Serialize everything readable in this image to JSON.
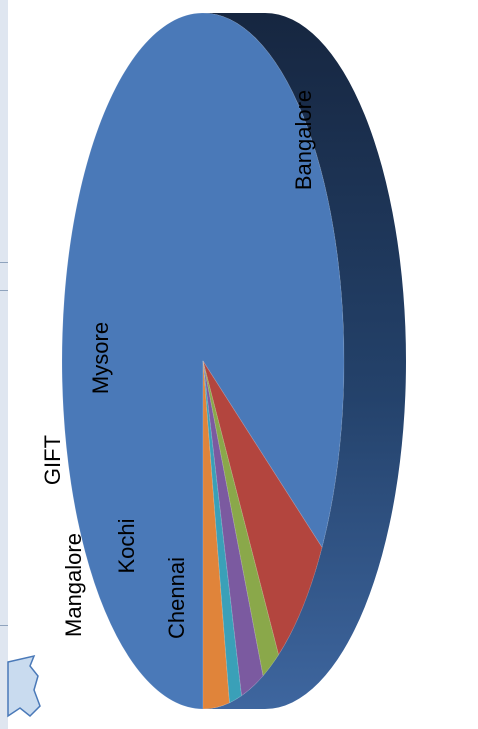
{
  "chart_data": {
    "type": "pie",
    "title": "",
    "orientation": "rotated-90-ccw",
    "style": "3d-elliptical",
    "slices": [
      {
        "label": "Bangalore",
        "value": 84.0,
        "color": "#4a79b8",
        "label_color": "#000000",
        "label_place": "inside"
      },
      {
        "label": "Chennai",
        "value": 7.0,
        "color": "#b3453e",
        "label_color": "#000000",
        "label_place": "inside"
      },
      {
        "label": "Kochi",
        "value": 2.0,
        "color": "#8aa84a",
        "label_color": "#000000",
        "label_place": "inside"
      },
      {
        "label": "Mangalore",
        "value": 2.6,
        "color": "#7b5aa0",
        "label_color": "#000000",
        "label_place": "outside"
      },
      {
        "label": "GIFT",
        "value": 1.4,
        "color": "#3aa0b8",
        "label_color": "#000000",
        "label_place": "outside"
      },
      {
        "label": "Mysore",
        "value": 3.0,
        "color": "#e0843a",
        "label_color": "#000000",
        "label_place": "inside"
      }
    ],
    "side_colors": {
      "dark": "#1a2d4a",
      "light": "#3e669f"
    }
  }
}
